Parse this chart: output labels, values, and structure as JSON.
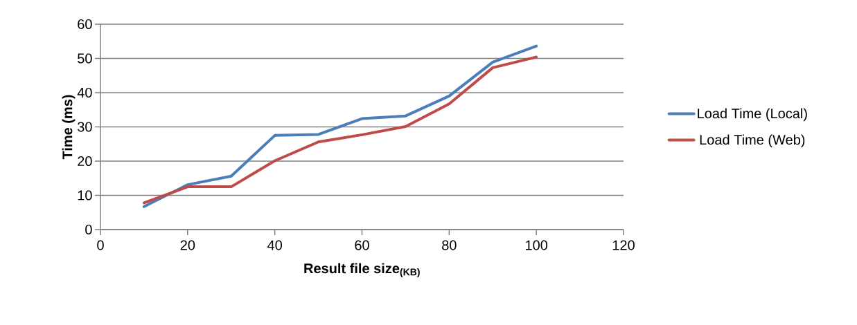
{
  "chart_data": {
    "type": "line",
    "xlabel": "Result file size$_{(KB)}$",
    "ylabel": "Time (ms)",
    "x": [
      10,
      20,
      30,
      40,
      50,
      60,
      70,
      80,
      90,
      100
    ],
    "series": [
      {
        "name": "Load Time  (Local)",
        "color": "#4a7ebb",
        "values": [
          6.7,
          13.1,
          15.6,
          27.5,
          27.8,
          32.4,
          33.2,
          39.0,
          48.9,
          53.6
        ]
      },
      {
        "name": "Load Time (Web)",
        "color": "#be4b48",
        "values": [
          7.8,
          12.5,
          12.5,
          20.1,
          25.6,
          27.7,
          30.1,
          36.7,
          47.3,
          50.4
        ]
      }
    ],
    "xlim": [
      0,
      120
    ],
    "xticks": [
      0,
      20,
      40,
      60,
      80,
      100,
      120
    ],
    "ylim": [
      0,
      60
    ],
    "yticks": [
      0,
      10,
      20,
      30,
      40,
      50,
      60
    ],
    "grid": "y",
    "legend": "right",
    "marker": "none",
    "line_style": "solid"
  }
}
